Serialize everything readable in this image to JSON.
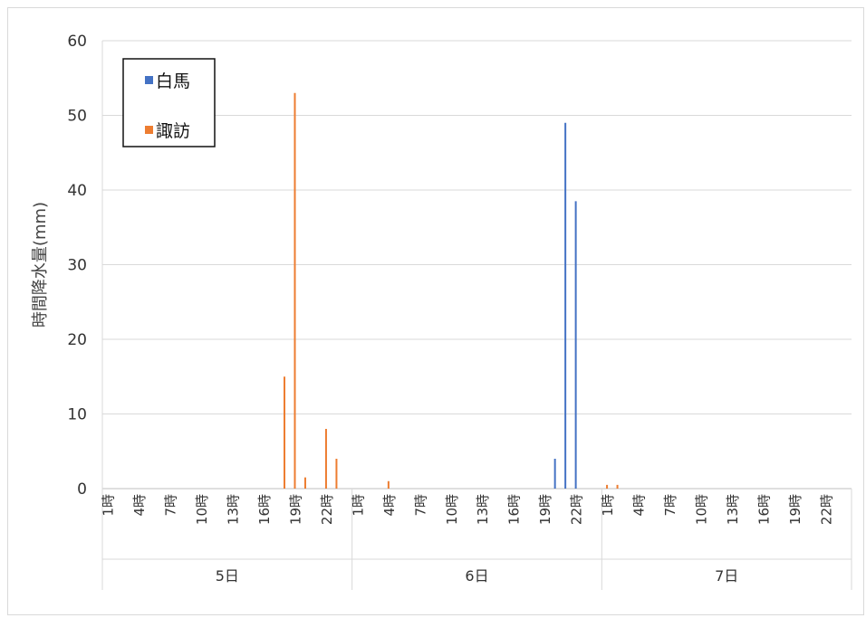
{
  "chart_data": {
    "type": "bar",
    "title": "",
    "ylabel": "時間降水量(mm)",
    "xlabel": "",
    "ylim": [
      0,
      60
    ],
    "yticks": [
      0,
      10,
      20,
      30,
      40,
      50,
      60
    ],
    "grid": true,
    "legend_position": "top-left",
    "hour_labels": [
      "1時",
      "4時",
      "7時",
      "10時",
      "13時",
      "16時",
      "19時",
      "22時"
    ],
    "groups": [
      "5日",
      "6日",
      "7日"
    ],
    "hours_per_group": 24,
    "series": [
      {
        "name": "白馬",
        "color": "#4472C4",
        "points": [
          {
            "group": "6日",
            "hour": 20,
            "value": 4
          },
          {
            "group": "6日",
            "hour": 21,
            "value": 49
          },
          {
            "group": "6日",
            "hour": 22,
            "value": 38.5
          }
        ]
      },
      {
        "name": "諏訪",
        "color": "#ED7D31",
        "points": [
          {
            "group": "5日",
            "hour": 18,
            "value": 15
          },
          {
            "group": "5日",
            "hour": 19,
            "value": 53
          },
          {
            "group": "5日",
            "hour": 20,
            "value": 1.5
          },
          {
            "group": "5日",
            "hour": 22,
            "value": 8
          },
          {
            "group": "5日",
            "hour": 23,
            "value": 4
          },
          {
            "group": "6日",
            "hour": 4,
            "value": 1
          },
          {
            "group": "7日",
            "hour": 1,
            "value": 0.5
          },
          {
            "group": "7日",
            "hour": 2,
            "value": 0.5
          }
        ]
      }
    ]
  }
}
